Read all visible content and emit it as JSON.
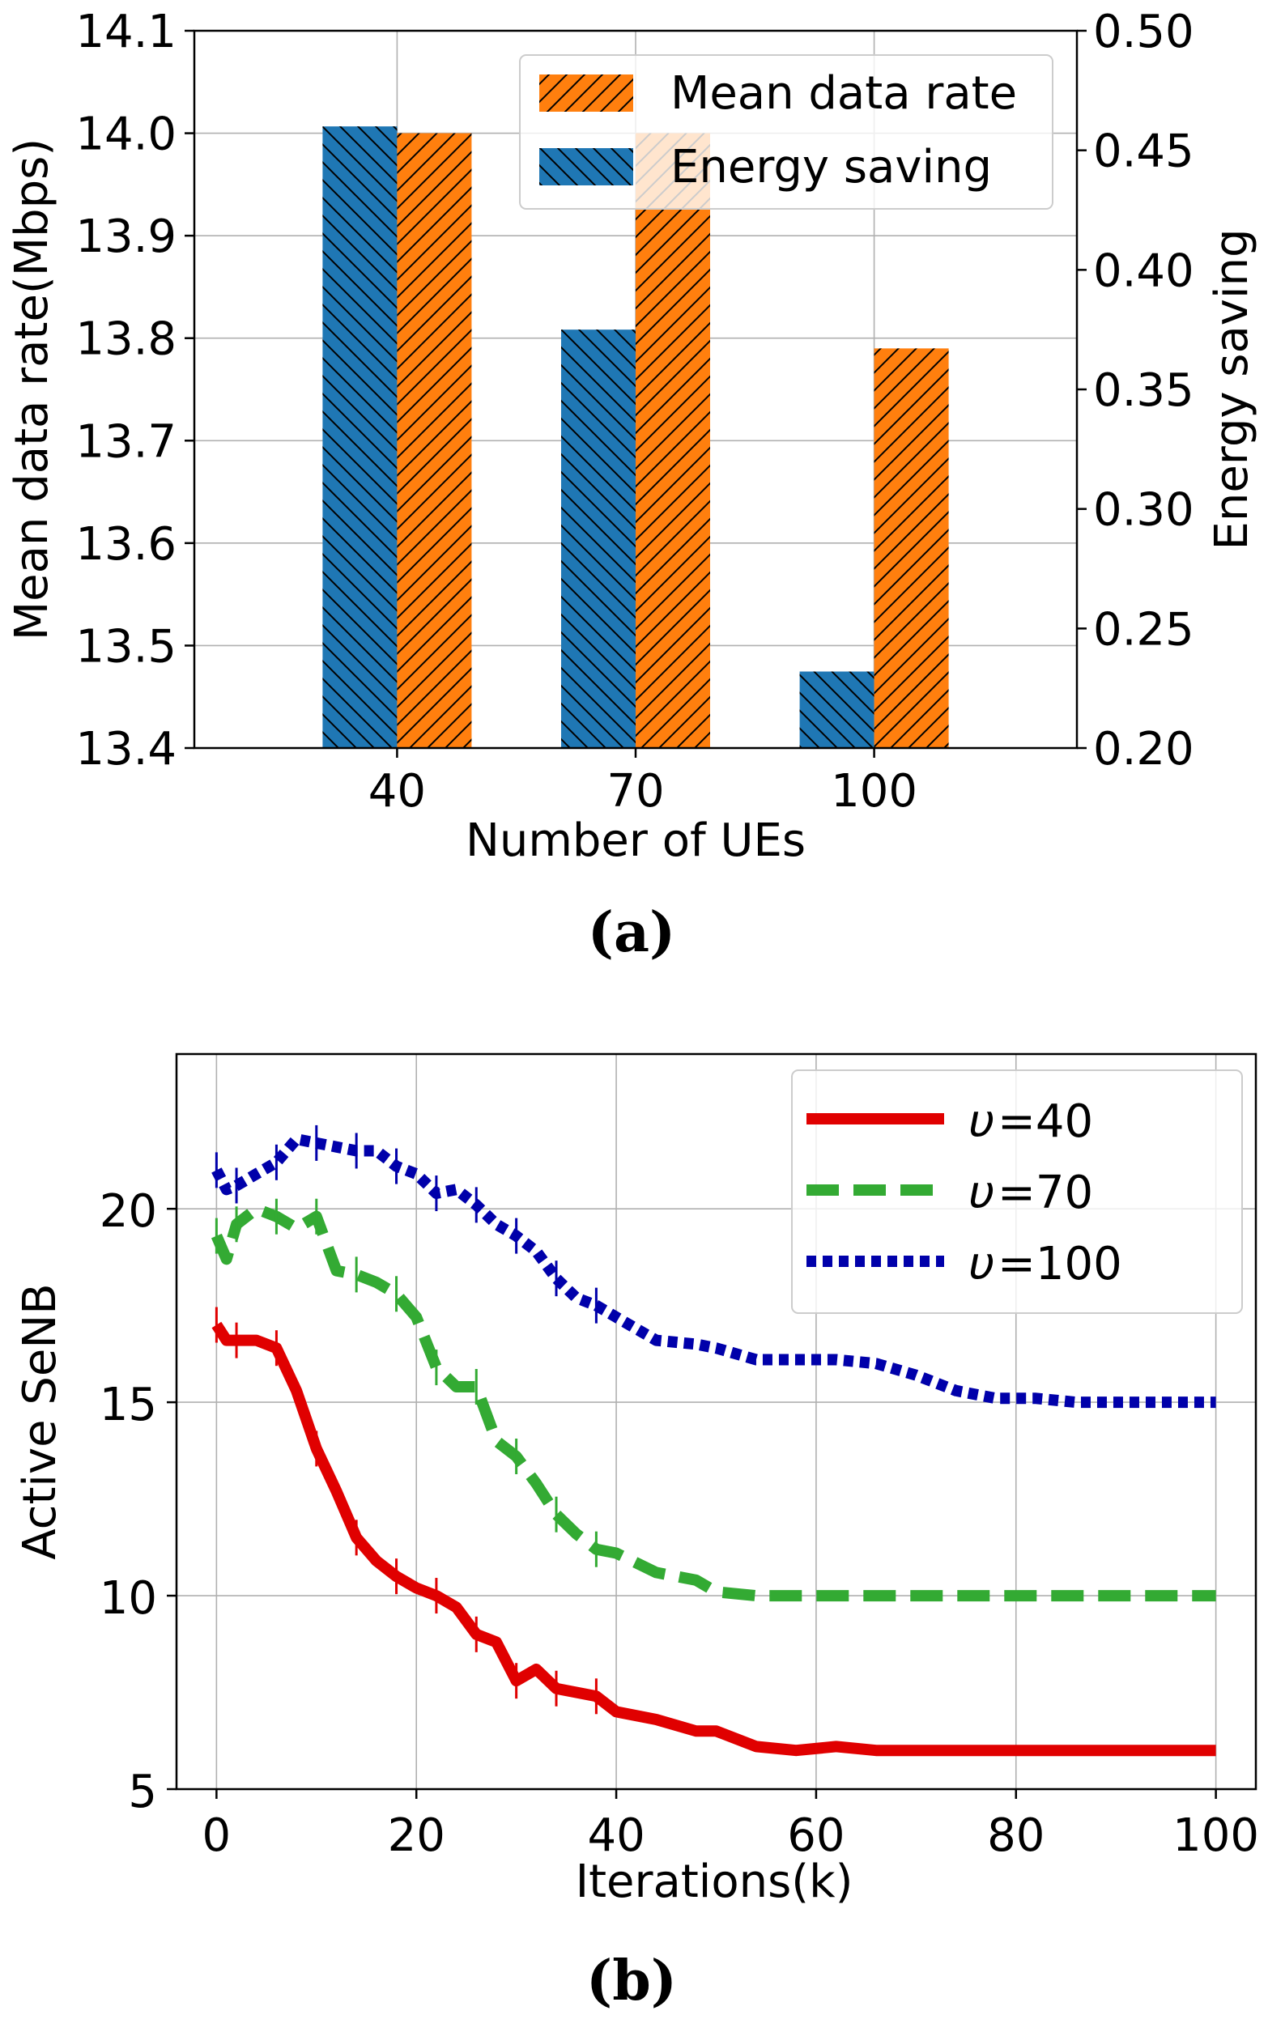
{
  "chart_data": [
    {
      "type": "bar",
      "caption": "(a)",
      "xlabel": "Number of UEs",
      "ylabel": "Mean data rate(Mbps)",
      "ylabel_right": "Energy saving",
      "categories": [
        "40",
        "70",
        "100"
      ],
      "ylim": [
        13.4,
        14.1
      ],
      "ylim_right": [
        0.2,
        0.5
      ],
      "yticks": [
        "13.4",
        "13.5",
        "13.6",
        "13.7",
        "13.8",
        "13.9",
        "14.0",
        "14.1"
      ],
      "yticks_right": [
        "0.20",
        "0.25",
        "0.30",
        "0.35",
        "0.40",
        "0.45",
        "0.50"
      ],
      "grid": true,
      "legend_position": "top-right",
      "series": [
        {
          "name": "Mean data rate",
          "axis": "left",
          "color": "#ff7f0e",
          "hatch": "//",
          "values": [
            14.0,
            14.0,
            13.79
          ]
        },
        {
          "name": "Energy saving",
          "axis": "right",
          "color": "#1f77b4",
          "hatch": "\\\\",
          "values": [
            0.46,
            0.375,
            0.232
          ]
        }
      ]
    },
    {
      "type": "line",
      "caption": "(b)",
      "xlabel": "Iterations(k)",
      "ylabel": "Active SeNB",
      "xlim": [
        -4,
        104
      ],
      "ylim": [
        5,
        24
      ],
      "xticks": [
        "0",
        "20",
        "40",
        "60",
        "80",
        "100"
      ],
      "yticks": [
        "5",
        "10",
        "15",
        "20"
      ],
      "grid": true,
      "legend_position": "top-right",
      "x": [
        0,
        1,
        2,
        4,
        6,
        8,
        10,
        12,
        14,
        16,
        18,
        20,
        22,
        24,
        26,
        28,
        30,
        32,
        34,
        36,
        38,
        40,
        44,
        48,
        50,
        54,
        58,
        62,
        66,
        70,
        74,
        78,
        82,
        86,
        90,
        94,
        100
      ],
      "series": [
        {
          "name": "=40",
          "symbol": "υ",
          "color": "#e00000",
          "style": "solid",
          "values": [
            17.0,
            16.6,
            16.6,
            16.6,
            16.4,
            15.3,
            13.8,
            12.7,
            11.5,
            10.9,
            10.5,
            10.2,
            10.0,
            9.7,
            9.0,
            8.8,
            7.8,
            8.1,
            7.6,
            7.5,
            7.4,
            7.0,
            6.8,
            6.5,
            6.5,
            6.1,
            6.0,
            6.1,
            6.0,
            6.0,
            6.0,
            6.0,
            6.0,
            6.0,
            6.0,
            6.0,
            6.0
          ]
        },
        {
          "name": "=70",
          "symbol": "υ",
          "color": "#33aa33",
          "style": "dashed",
          "values": [
            19.3,
            18.7,
            19.6,
            20.0,
            19.8,
            19.5,
            19.8,
            18.4,
            18.3,
            18.1,
            17.8,
            17.2,
            15.9,
            15.4,
            15.4,
            14.0,
            13.6,
            12.9,
            12.1,
            11.6,
            11.2,
            11.1,
            10.6,
            10.4,
            10.1,
            10.0,
            10.0,
            10.0,
            10.0,
            10.0,
            10.0,
            10.0,
            10.0,
            10.0,
            10.0,
            10.0,
            10.0
          ]
        },
        {
          "name": "=100",
          "symbol": "υ",
          "color": "#0000aa",
          "style": "dotted",
          "values": [
            21.0,
            20.5,
            20.6,
            20.9,
            21.2,
            21.8,
            21.7,
            21.6,
            21.5,
            21.5,
            21.1,
            20.9,
            20.4,
            20.5,
            20.1,
            19.6,
            19.3,
            18.9,
            18.2,
            17.7,
            17.5,
            17.2,
            16.6,
            16.5,
            16.4,
            16.1,
            16.1,
            16.1,
            16.0,
            15.7,
            15.3,
            15.1,
            15.1,
            15.0,
            15.0,
            15.0,
            15.0
          ]
        }
      ]
    }
  ]
}
